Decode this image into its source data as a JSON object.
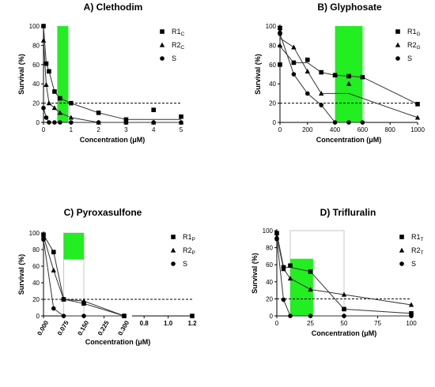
{
  "chart_data": [
    {
      "type": "scatter",
      "title": "A) Clethodim",
      "xlabel": "Concentration (μM)",
      "ylabel": "Survival (%)",
      "xlim": [
        0,
        5
      ],
      "ylim": [
        0,
        100
      ],
      "xticks": [
        "0",
        "1",
        "2",
        "3",
        "4",
        "5"
      ],
      "yticks": [
        "0",
        "20",
        "40",
        "60",
        "80",
        "100"
      ],
      "reference_line_y": 20,
      "highlight_box": {
        "x": [
          0.5,
          0.9
        ],
        "y": [
          0,
          100
        ],
        "filled": true
      },
      "series": [
        {
          "name": "R1",
          "subscript": "C",
          "marker": "square",
          "points": [
            [
              0,
              100
            ],
            [
              0.1,
              61
            ],
            [
              0.2,
              53
            ],
            [
              0.4,
              32
            ],
            [
              0.6,
              25
            ],
            [
              1,
              20
            ],
            [
              2,
              10
            ],
            [
              3,
              3
            ],
            [
              4,
              13
            ],
            [
              5,
              6
            ]
          ]
        },
        {
          "name": "R2",
          "subscript": "C",
          "marker": "triangle",
          "points": [
            [
              0,
              85
            ],
            [
              0.1,
              39
            ],
            [
              0.2,
              20
            ],
            [
              0.4,
              15
            ],
            [
              0.6,
              10
            ],
            [
              1,
              5
            ],
            [
              2,
              0
            ],
            [
              3,
              0
            ],
            [
              4,
              0
            ],
            [
              5,
              0
            ]
          ]
        },
        {
          "name": "S",
          "subscript": "",
          "marker": "circle",
          "points": [
            [
              0,
              15
            ],
            [
              0.1,
              5
            ],
            [
              0.2,
              0
            ],
            [
              0.4,
              0
            ],
            [
              0.6,
              0
            ],
            [
              1,
              0
            ],
            [
              2,
              0
            ],
            [
              3,
              0
            ],
            [
              4,
              0
            ],
            [
              5,
              0
            ]
          ]
        }
      ]
    },
    {
      "type": "scatter",
      "title": "B) Glyphosate",
      "xlabel": "Concentration (μM)",
      "ylabel": "Survival (%)",
      "xlim": [
        0,
        1000
      ],
      "ylim": [
        0,
        100
      ],
      "xticks": [
        "0",
        "200",
        "400",
        "600",
        "800",
        "1000"
      ],
      "yticks": [
        "0",
        "20",
        "40",
        "60",
        "80",
        "100"
      ],
      "reference_line_y": 20,
      "highlight_box": {
        "x": [
          400,
          600
        ],
        "y": [
          0,
          100
        ],
        "filled": true
      },
      "series": [
        {
          "name": "R1",
          "subscript": "G",
          "marker": "square",
          "points": [
            [
              0,
              98
            ],
            [
              0,
              60
            ],
            [
              100,
              62
            ],
            [
              200,
              65
            ],
            [
              300,
              52
            ],
            [
              400,
              49
            ],
            [
              500,
              48
            ],
            [
              600,
              47
            ],
            [
              1000,
              19
            ]
          ]
        },
        {
          "name": "R2",
          "subscript": "G",
          "marker": "triangle",
          "points": [
            [
              0,
              95
            ],
            [
              0,
              80
            ],
            [
              100,
              78
            ],
            [
              200,
              53
            ],
            [
              300,
              30
            ],
            [
              400,
              49
            ],
            [
              500,
              40
            ],
            [
              1000,
              5
            ]
          ]
        },
        {
          "name": "S",
          "subscript": "",
          "marker": "circle",
          "points": [
            [
              0,
              92
            ],
            [
              100,
              50
            ],
            [
              200,
              30
            ],
            [
              300,
              18
            ],
            [
              400,
              0
            ],
            [
              500,
              0
            ],
            [
              600,
              0
            ]
          ]
        }
      ]
    },
    {
      "type": "scatter",
      "title": "C) Pyroxasulfone",
      "xlabel": "Concentration (μM)",
      "ylabel": "Survival (%)",
      "xlim": [
        0,
        1.2
      ],
      "ylim": [
        0,
        100
      ],
      "axis_break_after": 0.3,
      "xticks": [
        "0.000",
        "0.075",
        "0.150",
        "0.225",
        "0.300",
        "0.8",
        "1.0",
        "1.2"
      ],
      "yticks": [
        "0",
        "20",
        "40",
        "60",
        "80",
        "100"
      ],
      "reference_line_y": 20,
      "highlight_box": {
        "x": [
          0.075,
          0.15
        ],
        "y": [
          68,
          100
        ],
        "filled": true
      },
      "outline_box": {
        "x": [
          0.075,
          0.15
        ],
        "y": [
          0,
          100
        ]
      },
      "series": [
        {
          "name": "R1",
          "subscript": "P",
          "marker": "square",
          "points": [
            [
              0,
              98
            ],
            [
              0.0375,
              77
            ],
            [
              0.075,
              20
            ],
            [
              0.15,
              15
            ],
            [
              0.3,
              0
            ],
            [
              1.2,
              0
            ]
          ]
        },
        {
          "name": "R2",
          "subscript": "P",
          "marker": "triangle",
          "points": [
            [
              0,
              96
            ],
            [
              0.0375,
              55
            ],
            [
              0.075,
              20
            ],
            [
              0.15,
              18
            ],
            [
              0.3,
              0
            ]
          ]
        },
        {
          "name": "S",
          "subscript": "",
          "marker": "circle",
          "points": [
            [
              0,
              92
            ],
            [
              0.0375,
              9
            ],
            [
              0.075,
              0
            ],
            [
              0.15,
              0
            ],
            [
              0.3,
              0
            ]
          ]
        }
      ]
    },
    {
      "type": "scatter",
      "title": "D) Trifluralin",
      "xlabel": "Concentration (μM)",
      "ylabel": "Survival (%)",
      "xlim": [
        0,
        100
      ],
      "ylim": [
        0,
        100
      ],
      "xticks": [
        "0",
        "25",
        "50",
        "75",
        "100"
      ],
      "yticks": [
        "0",
        "20",
        "40",
        "60",
        "80",
        "100"
      ],
      "reference_line_y": 20,
      "highlight_box": {
        "x": [
          10,
          27
        ],
        "y": [
          0,
          67
        ],
        "filled": true
      },
      "outline_box": {
        "x": [
          10,
          50
        ],
        "y": [
          0,
          100
        ]
      },
      "series": [
        {
          "name": "R1",
          "subscript": "T",
          "marker": "square",
          "points": [
            [
              0,
              97
            ],
            [
              5,
              57
            ],
            [
              10,
              59
            ],
            [
              25,
              52
            ],
            [
              50,
              8
            ],
            [
              100,
              3
            ]
          ]
        },
        {
          "name": "R2",
          "subscript": "T",
          "marker": "triangle",
          "points": [
            [
              0,
              93
            ],
            [
              5,
              55
            ],
            [
              10,
              44
            ],
            [
              25,
              31
            ],
            [
              50,
              25
            ],
            [
              100,
              13
            ]
          ]
        },
        {
          "name": "S",
          "subscript": "",
          "marker": "circle",
          "points": [
            [
              0,
              90
            ],
            [
              5,
              19
            ],
            [
              10,
              0
            ],
            [
              25,
              0
            ],
            [
              50,
              0
            ],
            [
              100,
              0
            ]
          ]
        }
      ]
    }
  ]
}
